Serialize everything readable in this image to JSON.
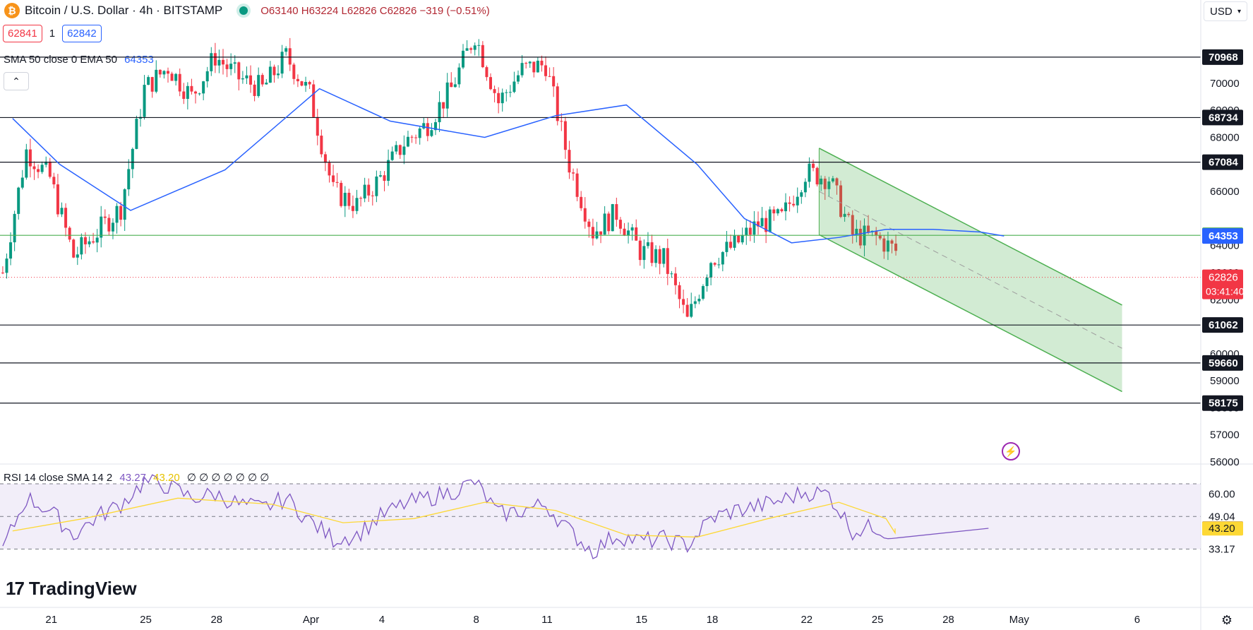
{
  "header": {
    "symbol": "Bitcoin / U.S. Dollar · 4h · BITSTAMP",
    "ohlc": "O63140 H63224 L62826 C62826 −319 (−0.51%)",
    "bid": "62841",
    "spread": "1",
    "ask": "62842",
    "currency": "USD",
    "currency_icon": "chevron-down-icon"
  },
  "indicators": {
    "sma_label": "SMA 50 close 0 EMA 50",
    "sma_value": "64353",
    "rsi_label": "RSI 14 close SMA 14 2",
    "rsi_value": "43.27",
    "rsi_sma_value": "43.20",
    "rsi_extra": "∅ ∅ ∅ ∅ ∅ ∅ ∅"
  },
  "brand": "TradingView",
  "colors": {
    "up": "#089981",
    "down": "#f23645",
    "sma": "#2962ff",
    "rsi": "#7e57c2",
    "rsi_sma": "#fdd835",
    "channel": "#4caf50",
    "channel_fill": "rgba(76,175,80,0.25)",
    "rsi_band": "rgba(126,87,194,0.1)",
    "support_resistance": "#000000",
    "green_level": "#4caf50"
  },
  "chart_data": [
    {
      "type": "candlestick",
      "title": "Bitcoin / U.S. Dollar · 4h · BITSTAMP",
      "ylim": [
        55500,
        73300
      ],
      "y_ticks": [
        56000,
        57000,
        58000,
        59000,
        60000,
        61000,
        62000,
        63000,
        64000,
        66000,
        68000,
        69000,
        70000
      ],
      "x_ticks": [
        "21",
        "25",
        "28",
        "Apr",
        "4",
        "8",
        "11",
        "15",
        "18",
        "22",
        "25",
        "28",
        "May",
        "6"
      ],
      "horizontal_levels": [
        70968,
        68734,
        67084,
        61062,
        59660,
        58175
      ],
      "green_level": 64379,
      "last_price": 62826,
      "countdown": "03:41:40",
      "sma50_last": 64353,
      "grid": false,
      "anchors_date_close": [
        [
          "2024-03-19",
          63000
        ],
        [
          "2024-03-20",
          67500
        ],
        [
          "2024-03-21",
          66500
        ],
        [
          "2024-03-22",
          63600
        ],
        [
          "2024-03-23",
          64500
        ],
        [
          "2024-03-24",
          65400
        ],
        [
          "2024-03-25",
          69800
        ],
        [
          "2024-03-26",
          70600
        ],
        [
          "2024-03-27",
          69500
        ],
        [
          "2024-03-28",
          71000
        ],
        [
          "2024-03-29",
          70200
        ],
        [
          "2024-03-30",
          69800
        ],
        [
          "2024-03-31",
          71000
        ],
        [
          "2024-04-01",
          69600
        ],
        [
          "2024-04-02",
          66000
        ],
        [
          "2024-04-03",
          65500
        ],
        [
          "2024-04-04",
          66500
        ],
        [
          "2024-04-05",
          67800
        ],
        [
          "2024-04-06",
          68500
        ],
        [
          "2024-04-07",
          69800
        ],
        [
          "2024-04-08",
          71800
        ],
        [
          "2024-04-09",
          69300
        ],
        [
          "2024-04-10",
          70500
        ],
        [
          "2024-04-11",
          70700
        ],
        [
          "2024-04-12",
          67000
        ],
        [
          "2024-04-13",
          64500
        ],
        [
          "2024-04-14",
          65200
        ],
        [
          "2024-04-15",
          63800
        ],
        [
          "2024-04-16",
          63500
        ],
        [
          "2024-04-17",
          61200
        ],
        [
          "2024-04-18",
          63500
        ],
        [
          "2024-04-19",
          64000
        ],
        [
          "2024-04-20",
          64800
        ],
        [
          "2024-04-21",
          65000
        ],
        [
          "2024-04-22",
          66700
        ],
        [
          "2024-04-23",
          66500
        ],
        [
          "2024-04-24",
          64400
        ],
        [
          "2024-04-25",
          64300
        ],
        [
          "2024-04-26",
          63700
        ],
        [
          "2024-04-27",
          63500
        ],
        [
          "2024-04-28",
          63800
        ],
        [
          "2024-04-29",
          63600
        ],
        [
          "2024-04-30",
          62826
        ]
      ],
      "sma50_date_value": [
        [
          "2024-03-19",
          68700
        ],
        [
          "2024-03-21",
          67000
        ],
        [
          "2024-03-24",
          65300
        ],
        [
          "2024-03-28",
          66800
        ],
        [
          "2024-04-01",
          69800
        ],
        [
          "2024-04-04",
          68600
        ],
        [
          "2024-04-08",
          68000
        ],
        [
          "2024-04-11",
          68800
        ],
        [
          "2024-04-14",
          69200
        ],
        [
          "2024-04-17",
          67000
        ],
        [
          "2024-04-19",
          65000
        ],
        [
          "2024-04-21",
          64100
        ],
        [
          "2024-04-23",
          64300
        ],
        [
          "2024-04-25",
          64600
        ],
        [
          "2024-04-27",
          64600
        ],
        [
          "2024-04-29",
          64500
        ],
        [
          "2024-04-30",
          64353
        ]
      ],
      "descending_channel": {
        "upper": [
          [
            "2024-04-22 16:00",
            67600
          ],
          [
            "2024-05-05",
            61800
          ]
        ],
        "lower": [
          [
            "2024-04-22 16:00",
            64400
          ],
          [
            "2024-05-05",
            58600
          ]
        ]
      }
    },
    {
      "type": "line",
      "title": "RSI 14 close SMA 14 2",
      "ylim": [
        25,
        75
      ],
      "y_ticks": [
        33.17,
        49.04,
        60.0
      ],
      "band": [
        33.17,
        65.0
      ],
      "rsi_last": 43.27,
      "rsi_sma_last": 43.2,
      "rsi_date_value": [
        [
          "2024-03-19",
          33
        ],
        [
          "2024-03-20",
          58
        ],
        [
          "2024-03-21",
          52
        ],
        [
          "2024-03-22",
          40
        ],
        [
          "2024-03-23",
          49
        ],
        [
          "2024-03-24",
          55
        ],
        [
          "2024-03-25",
          66
        ],
        [
          "2024-03-26",
          64
        ],
        [
          "2024-03-27",
          58
        ],
        [
          "2024-03-28",
          60
        ],
        [
          "2024-03-29",
          55
        ],
        [
          "2024-03-30",
          53
        ],
        [
          "2024-03-31",
          58
        ],
        [
          "2024-04-01",
          47
        ],
        [
          "2024-04-02",
          38
        ],
        [
          "2024-04-03",
          40
        ],
        [
          "2024-04-04",
          49
        ],
        [
          "2024-04-05",
          55
        ],
        [
          "2024-04-06",
          58
        ],
        [
          "2024-04-07",
          61
        ],
        [
          "2024-04-08",
          66
        ],
        [
          "2024-04-09",
          50
        ],
        [
          "2024-04-10",
          52
        ],
        [
          "2024-04-11",
          55
        ],
        [
          "2024-04-12",
          42
        ],
        [
          "2024-04-13",
          32
        ],
        [
          "2024-04-14",
          40
        ],
        [
          "2024-04-15",
          37
        ],
        [
          "2024-04-16",
          38
        ],
        [
          "2024-04-17",
          35
        ],
        [
          "2024-04-18",
          48
        ],
        [
          "2024-04-19",
          52
        ],
        [
          "2024-04-20",
          54
        ],
        [
          "2024-04-21",
          57
        ],
        [
          "2024-04-22",
          61
        ],
        [
          "2024-04-23",
          60
        ],
        [
          "2024-04-24",
          42
        ],
        [
          "2024-04-25",
          44
        ],
        [
          "2024-04-26",
          38
        ],
        [
          "2024-04-27",
          40
        ],
        [
          "2024-04-28",
          44
        ],
        [
          "2024-04-29",
          40
        ],
        [
          "2024-04-30",
          43.27
        ]
      ],
      "rsi_sma_date_value": [
        [
          "2024-03-19",
          42
        ],
        [
          "2024-03-22",
          48
        ],
        [
          "2024-03-26",
          58
        ],
        [
          "2024-03-30",
          55
        ],
        [
          "2024-04-02",
          46
        ],
        [
          "2024-04-05",
          48
        ],
        [
          "2024-04-08",
          56
        ],
        [
          "2024-04-11",
          52
        ],
        [
          "2024-04-14",
          40
        ],
        [
          "2024-04-17",
          39
        ],
        [
          "2024-04-20",
          48
        ],
        [
          "2024-04-23",
          56
        ],
        [
          "2024-04-25",
          48
        ],
        [
          "2024-04-28",
          41
        ],
        [
          "2024-04-30",
          43.2
        ]
      ]
    }
  ]
}
